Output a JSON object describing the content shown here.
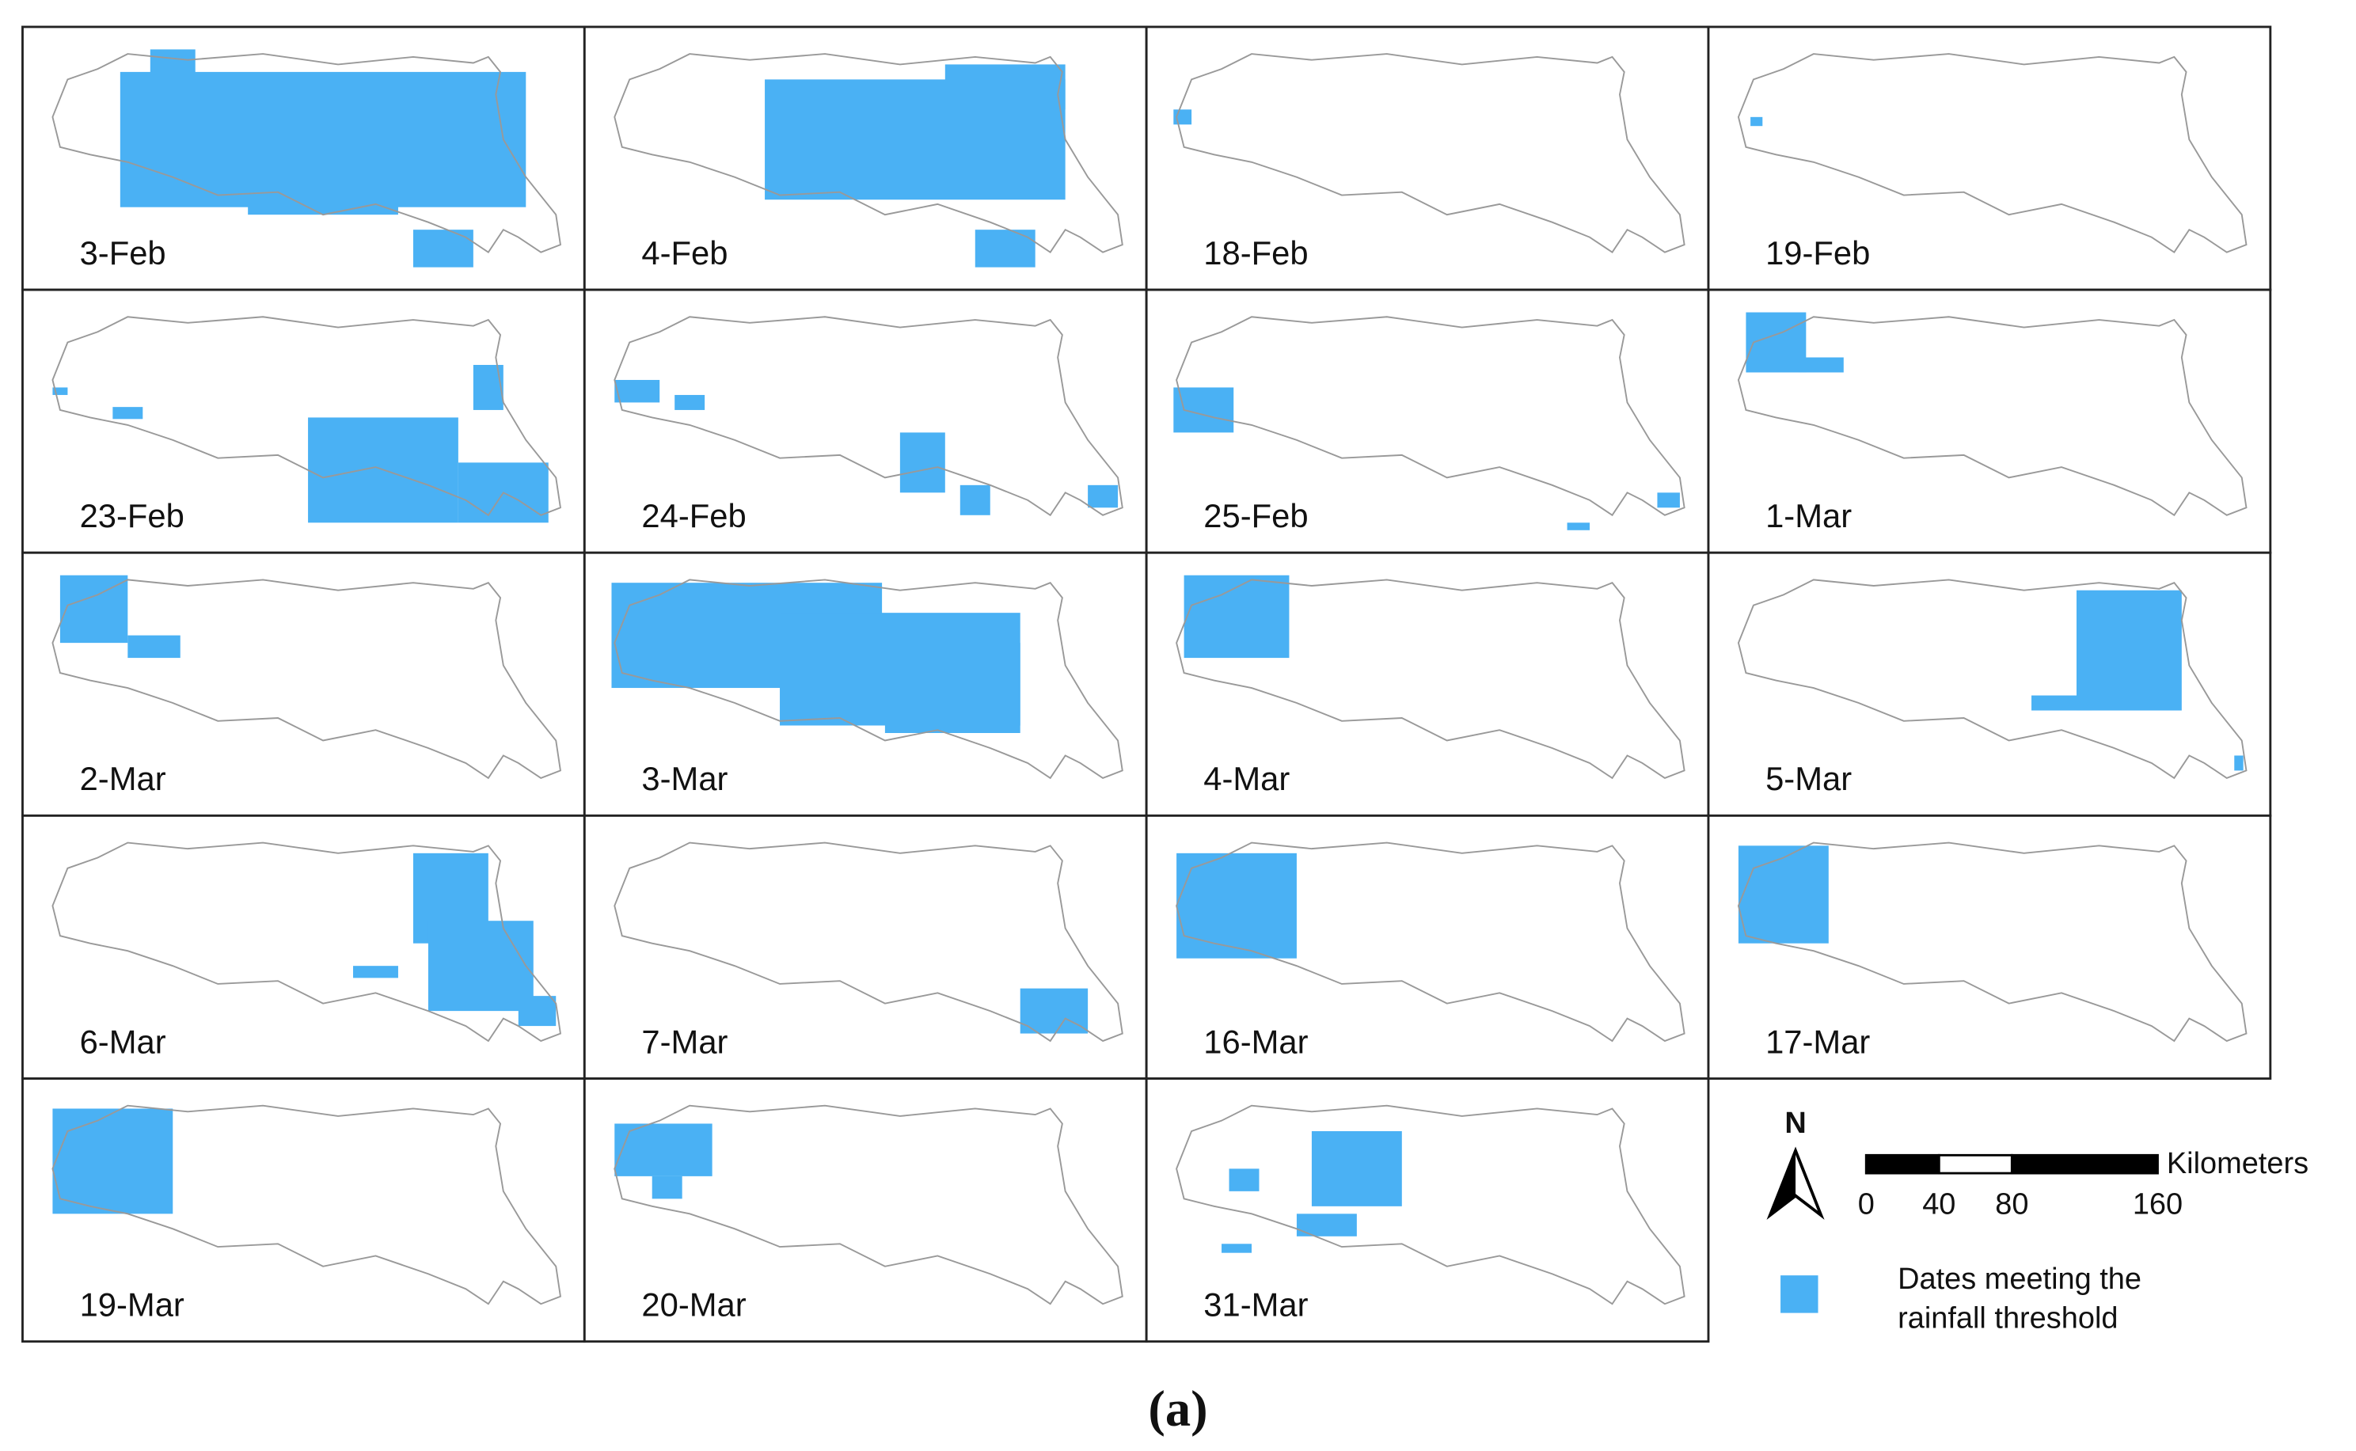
{
  "panels": [
    {
      "label": "3-Feb"
    },
    {
      "label": "4-Feb"
    },
    {
      "label": "18-Feb"
    },
    {
      "label": "19-Feb"
    },
    {
      "label": "23-Feb"
    },
    {
      "label": "24-Feb"
    },
    {
      "label": "25-Feb"
    },
    {
      "label": "1-Mar"
    },
    {
      "label": "2-Mar"
    },
    {
      "label": "3-Mar"
    },
    {
      "label": "4-Mar"
    },
    {
      "label": "5-Mar"
    },
    {
      "label": "6-Mar"
    },
    {
      "label": "7-Mar"
    },
    {
      "label": "16-Mar"
    },
    {
      "label": "17-Mar"
    },
    {
      "label": "19-Mar"
    },
    {
      "label": "20-Mar"
    },
    {
      "label": "31-Mar"
    }
  ],
  "legend": {
    "north": "N",
    "scale_unit": "Kilometers",
    "scale_ticks": [
      0,
      40,
      80,
      160
    ],
    "item_lines": [
      "Dates meeting the",
      "rainfall threshold"
    ]
  },
  "caption": "(a)"
}
